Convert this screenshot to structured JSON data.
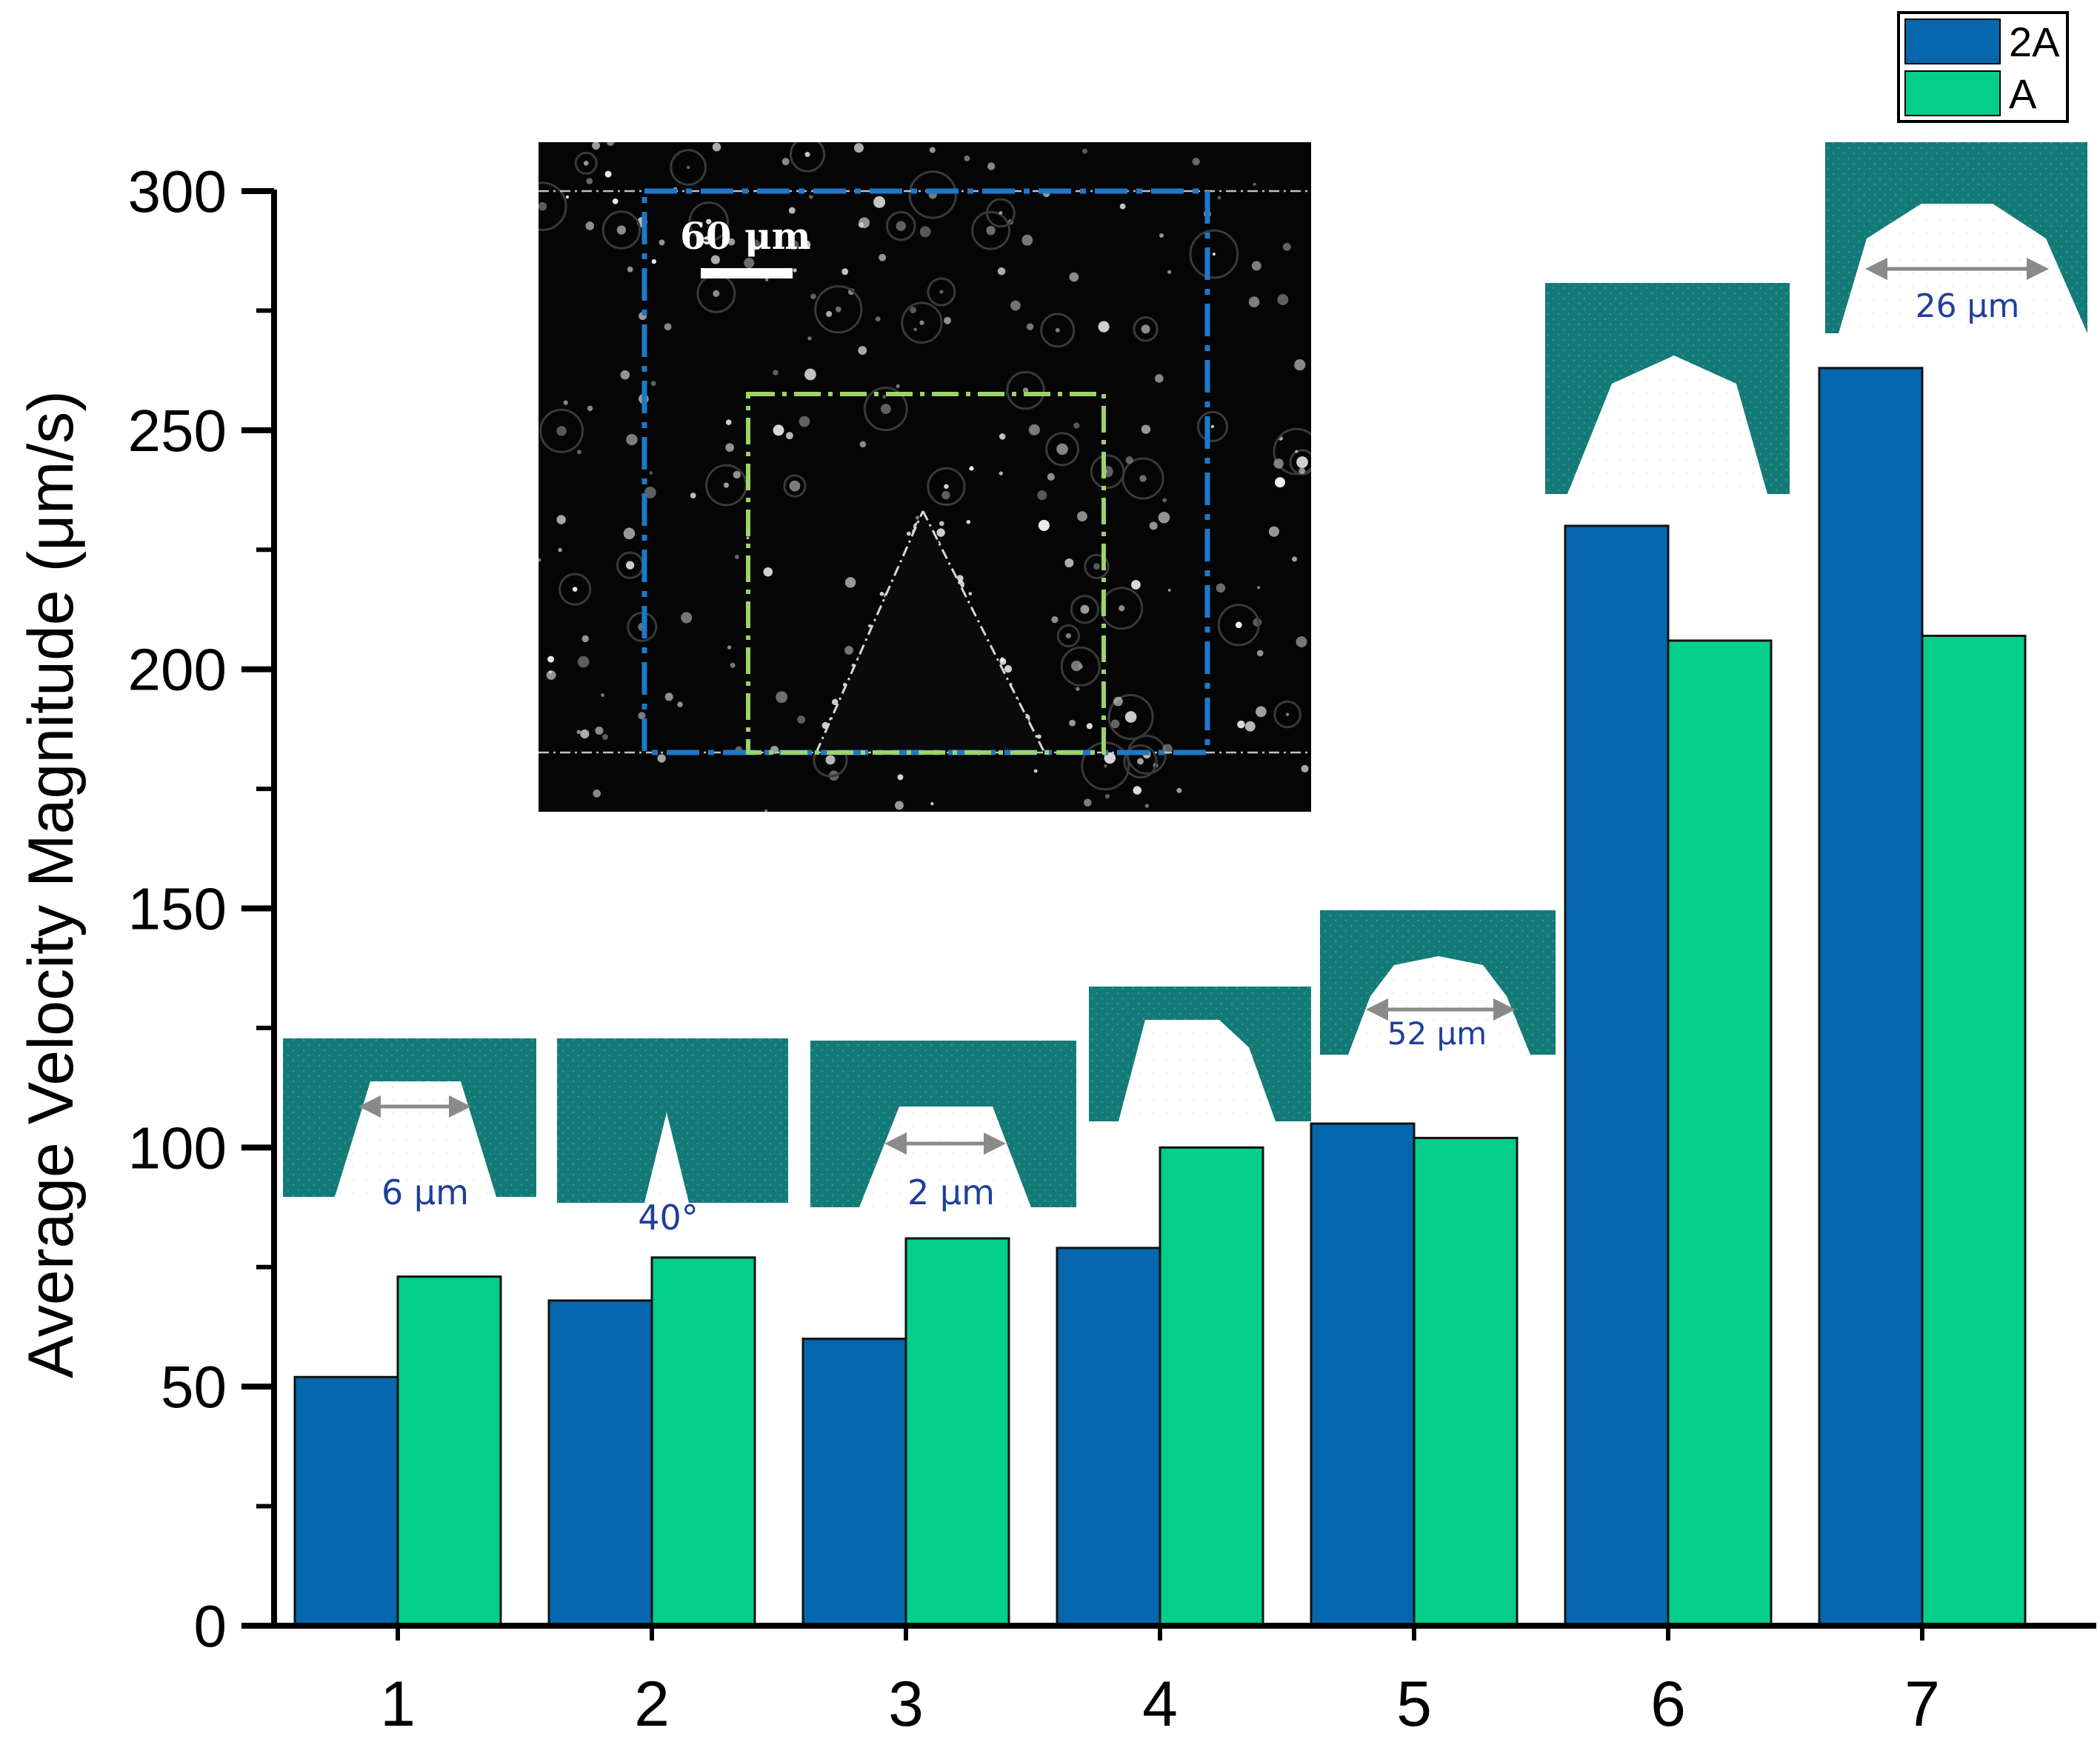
{
  "chart_data": {
    "type": "bar",
    "title": "",
    "xlabel": "",
    "ylabel": "Average Velocity Magnitude (μm/s)",
    "ylim": [
      0,
      300
    ],
    "yticks": [
      0,
      50,
      100,
      150,
      200,
      250,
      300
    ],
    "categories": [
      "1",
      "2",
      "3",
      "4",
      "5",
      "6",
      "7"
    ],
    "series": [
      {
        "name": "2A",
        "color": "#0567ad",
        "values": [
          52,
          68,
          60,
          79,
          105,
          230,
          263
        ]
      },
      {
        "name": "A",
        "color": "#04cf8a",
        "values": [
          73,
          77,
          81,
          100,
          102,
          206,
          207
        ]
      }
    ],
    "legend_position": "top-right",
    "grid": false,
    "annotations": [
      "6 μm",
      "40°",
      "2 μm",
      "52 μm",
      "26 μm"
    ],
    "inset": {
      "type": "micrograph",
      "scale_bar_label": "60 μm",
      "frame_colors": [
        "#1f78c8",
        "#9ed36a"
      ]
    },
    "geometry_color": "#137a78"
  }
}
